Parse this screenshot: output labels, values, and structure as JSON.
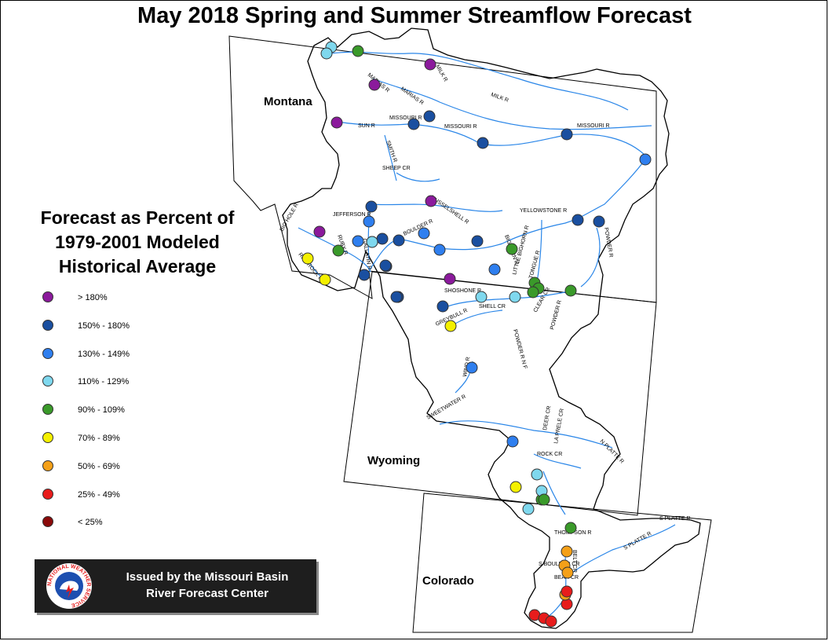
{
  "title": "May 2018 Spring and Summer Streamflow Forecast",
  "legend": {
    "title_lines": [
      "Forecast as Percent of",
      "1979-2001 Modeled",
      "Historical Average"
    ],
    "classes": [
      {
        "label": "> 180%",
        "color": "#8b1a9c"
      },
      {
        "label": "150% - 180%",
        "color": "#1a4fa0"
      },
      {
        "label": "130% - 149%",
        "color": "#2f7fef"
      },
      {
        "label": "110% - 129%",
        "color": "#7fd8ee"
      },
      {
        "label": "90% - 109%",
        "color": "#3a9a2a"
      },
      {
        "label": "70% - 89%",
        "color": "#f4f000"
      },
      {
        "label": "50% - 69%",
        "color": "#f4a018"
      },
      {
        "label": "25% - 49%",
        "color": "#e81c1c"
      },
      {
        "label": "< 25%",
        "color": "#8a0a0a"
      }
    ]
  },
  "states": [
    "Montana",
    "Wyoming",
    "Colorado"
  ],
  "rivers": [
    "MILK R",
    "MARIAS R",
    "MARIAS R",
    "MILK R",
    "MISSOURI R",
    "SUN R",
    "MISSOURI R",
    "MISSOURI R",
    "SMITH R",
    "SHEEP CR",
    "MUSSELSHELL R",
    "JEFFERSON R",
    "BIG HOLE R",
    "RUBY R",
    "GALLATIN R",
    "RED ROCK R",
    "YELLOWSTONE R",
    "BOULDER R",
    "BIGHORN R",
    "LITTLE BIGHORN R",
    "TONGUE R",
    "POWDER R",
    "SHOSHONE R",
    "SHELL CR",
    "GREYBULL R",
    "CLEAR CR",
    "POWDER R",
    "POWDER R N F",
    "WIND R",
    "SWEETWATER R",
    "DEER CR",
    "LA PRELE CR",
    "N PLATTE R",
    "ROCK CR",
    "S PLATTE R",
    "THOMPSON R",
    "S PLATTE R",
    "S BOULDER CR",
    "BEAR CR",
    "BELT CR"
  ],
  "issued": {
    "line1": "Issued by the Missouri Basin",
    "line2": "River Forecast Center",
    "logo_text": "NATIONAL WEATHER SERVICE"
  },
  "stations": [
    {
      "cls": 3
    },
    {
      "cls": 3
    },
    {
      "cls": 4
    },
    {
      "cls": 0
    },
    {
      "cls": 0
    },
    {
      "cls": 0
    },
    {
      "cls": 1
    },
    {
      "cls": 1
    },
    {
      "cls": 1
    },
    {
      "cls": 1
    },
    {
      "cls": 2
    },
    {
      "cls": 0
    },
    {
      "cls": 1
    },
    {
      "cls": 2
    },
    {
      "cls": 0
    },
    {
      "cls": 5
    },
    {
      "cls": 4
    },
    {
      "cls": 2
    },
    {
      "cls": 3
    },
    {
      "cls": 1
    },
    {
      "cls": 1
    },
    {
      "cls": 5
    },
    {
      "cls": 1
    },
    {
      "cls": 1
    },
    {
      "cls": 2
    },
    {
      "cls": 2
    },
    {
      "cls": 1
    },
    {
      "cls": 4
    },
    {
      "cls": 2
    },
    {
      "cls": 0
    },
    {
      "cls": 3
    },
    {
      "cls": 3
    },
    {
      "cls": 4
    },
    {
      "cls": 4
    },
    {
      "cls": 4
    },
    {
      "cls": 1
    },
    {
      "cls": 1
    },
    {
      "cls": 4
    },
    {
      "cls": 1
    },
    {
      "cls": 1
    },
    {
      "cls": 2
    },
    {
      "cls": 5
    },
    {
      "cls": 2
    },
    {
      "cls": 4
    },
    {
      "cls": 3
    },
    {
      "cls": 3
    },
    {
      "cls": 4
    },
    {
      "cls": 5
    },
    {
      "cls": 3
    },
    {
      "cls": 4
    },
    {
      "cls": 6
    },
    {
      "cls": 6
    },
    {
      "cls": 6
    },
    {
      "cls": 7
    },
    {
      "cls": 6
    },
    {
      "cls": 7
    },
    {
      "cls": 7
    },
    {
      "cls": 7
    },
    {
      "cls": 7
    },
    {
      "cls": 1
    },
    {
      "cls": 1
    },
    {
      "cls": 3
    }
  ]
}
